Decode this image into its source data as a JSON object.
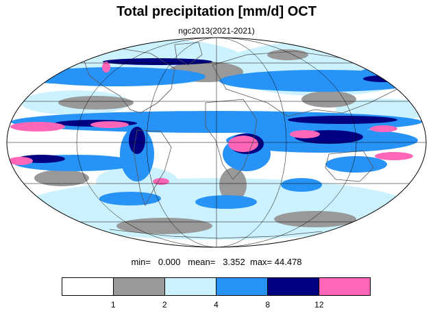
{
  "title": "Total precipitation [mm/d] OCT",
  "subtitle": "ngc2013(2021-2021)",
  "stats": {
    "min_label": "min=",
    "min_value": "0.000",
    "mean_label": "mean=",
    "mean_value": "3.352",
    "max_label": "max=",
    "max_value": "44.478"
  },
  "colorbar": {
    "colors": [
      "#ffffff",
      "#999999",
      "#ccf2ff",
      "#2893f7",
      "#000080",
      "#ff66b8"
    ],
    "labels": [
      "1",
      "2",
      "4",
      "8",
      "12"
    ]
  },
  "map": {
    "projection": "mollweide",
    "colors": {
      "none": "#ffffff",
      "light": "#999999",
      "moderate": "#ccf2ff",
      "heavy": "#2893f7",
      "very_heavy": "#000080",
      "extreme": "#ff66b8",
      "coast": "#555555",
      "grid": "#000000"
    }
  }
}
